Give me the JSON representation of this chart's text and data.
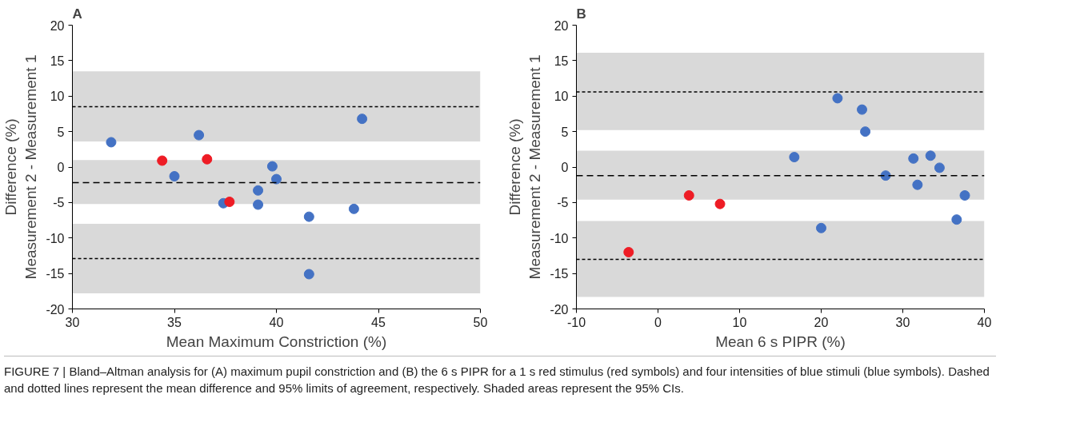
{
  "chart_data": [
    {
      "type": "scatter",
      "title": "A",
      "xlabel": "Mean Maximum Constriction (%)",
      "ylabel": "Difference (%)\nMeasurement 2 - Measurement 1",
      "xlim": [
        30,
        50
      ],
      "xticks": [
        30,
        35,
        40,
        45,
        50
      ],
      "ylim": [
        -20,
        20
      ],
      "yticks": [
        -20,
        -15,
        -10,
        -5,
        0,
        5,
        10,
        15,
        20
      ],
      "grid": false,
      "marker": "circle",
      "series": [
        {
          "color": "#4472c4",
          "x": [
            31.9,
            35.0,
            36.2,
            37.4,
            39.1,
            39.1,
            39.8,
            40.0,
            41.6,
            41.6,
            43.8,
            44.2
          ],
          "values": [
            3.5,
            -1.3,
            4.5,
            -5.1,
            -3.3,
            -5.3,
            0.1,
            -1.7,
            -7.0,
            -15.1,
            -5.9,
            6.8
          ]
        },
        {
          "color": "#ee1c25",
          "x": [
            34.4,
            36.6,
            37.7
          ],
          "values": [
            0.9,
            1.1,
            -4.9
          ]
        }
      ],
      "bands": [
        {
          "axis": "y",
          "from": 3.6,
          "to": 13.5,
          "color": "#d9d9d9"
        },
        {
          "axis": "y",
          "from": -5.2,
          "to": 1.0,
          "color": "#d9d9d9"
        },
        {
          "axis": "y",
          "from": -17.8,
          "to": -8.0,
          "color": "#d9d9d9"
        }
      ],
      "ref_lines": [
        {
          "axis": "y",
          "value": 8.5,
          "line_style": "dotted",
          "color": "#000000"
        },
        {
          "axis": "y",
          "value": -2.2,
          "line_style": "dashed",
          "color": "#000000"
        },
        {
          "axis": "y",
          "value": -12.9,
          "line_style": "dotted",
          "color": "#000000"
        }
      ],
      "annotations": [
        "FIGURE 7 | Bland–Altman analysis for (A) maximum pupil constriction and (B) the 6 s PIPR for a 1 s red stimulus (red symbols) and four intensities of blue stimuli (blue symbols). Dashed and dotted lines represent the mean difference and 95% limits of agreement, respectively. Shaded areas represent the 95% CIs."
      ]
    },
    {
      "type": "scatter",
      "title": "B",
      "xlabel": "Mean 6 s PIPR (%)",
      "ylabel": "Difference (%)\nMeasurement 2 - Measurement 1",
      "xlim": [
        -10,
        40
      ],
      "xticks": [
        -10,
        0,
        10,
        20,
        30,
        40
      ],
      "ylim": [
        -20,
        20
      ],
      "yticks": [
        -20,
        -15,
        -10,
        -5,
        0,
        5,
        10,
        15,
        20
      ],
      "grid": false,
      "marker": "circle",
      "series": [
        {
          "color": "#4472c4",
          "x": [
            16.7,
            20.0,
            22.0,
            25.0,
            25.4,
            27.9,
            31.3,
            31.8,
            33.4,
            34.5,
            36.6,
            37.6
          ],
          "values": [
            1.4,
            -8.6,
            9.7,
            8.1,
            5.0,
            -1.2,
            1.2,
            -2.5,
            1.6,
            -0.1,
            -7.4,
            -4.0
          ]
        },
        {
          "color": "#ee1c25",
          "x": [
            -3.6,
            3.8,
            7.6
          ],
          "values": [
            -12.0,
            -4.0,
            -5.2
          ]
        }
      ],
      "bands": [
        {
          "axis": "y",
          "from": 5.2,
          "to": 16.1,
          "color": "#d9d9d9"
        },
        {
          "axis": "y",
          "from": -4.6,
          "to": 2.3,
          "color": "#d9d9d9"
        },
        {
          "axis": "y",
          "from": -18.3,
          "to": -7.6,
          "color": "#d9d9d9"
        }
      ],
      "ref_lines": [
        {
          "axis": "y",
          "value": 10.6,
          "line_style": "dotted",
          "color": "#000000"
        },
        {
          "axis": "y",
          "value": -1.2,
          "line_style": "dashed",
          "color": "#000000"
        },
        {
          "axis": "y",
          "value": -13.0,
          "line_style": "dotted",
          "color": "#000000"
        }
      ]
    }
  ]
}
